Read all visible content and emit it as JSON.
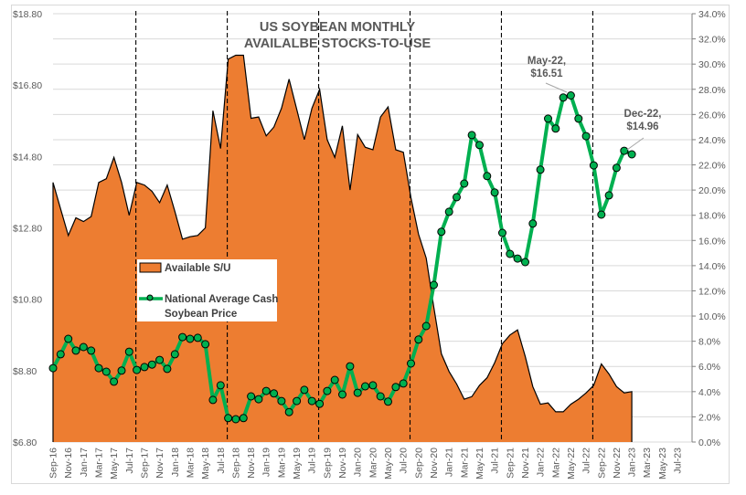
{
  "chart_data": {
    "type": "area+line",
    "title": [
      "US SOYBEAN MONTHLY",
      "AVAILALBE STOCKS-TO-USE"
    ],
    "xlabel": "",
    "ylabel_left": "",
    "ylabel_right": "",
    "left_axis": {
      "min": 6.8,
      "max": 18.8,
      "step": 2.0,
      "tick_labels": [
        "$6.80",
        "$8.80",
        "$10.80",
        "$12.80",
        "$14.80",
        "$16.80",
        "$18.80"
      ]
    },
    "right_axis": {
      "min": 0,
      "max": 34,
      "step": 2,
      "tick_labels": [
        "0.0%",
        "2.0%",
        "4.0%",
        "6.0%",
        "8.0%",
        "10.0%",
        "12.0%",
        "14.0%",
        "16.0%",
        "18.0%",
        "20.0%",
        "22.0%",
        "24.0%",
        "26.0%",
        "28.0%",
        "30.0%",
        "32.0%",
        "34.0%"
      ]
    },
    "gridlines": "horizontal",
    "x_tick_labels": [
      "Sep-16",
      "Nov-16",
      "Jan-17",
      "Mar-17",
      "May-17",
      "Jul-17",
      "Sep-17",
      "Nov-17",
      "Jan-18",
      "Mar-18",
      "May-18",
      "Jul-18",
      "Sep-18",
      "Nov-18",
      "Jan-19",
      "Mar-19",
      "May-19",
      "Jul-19",
      "Sep-19",
      "Nov-19",
      "Jan-20",
      "Mar-20",
      "May-20",
      "Jul-20",
      "Sep-20",
      "Nov-20",
      "Jan-21",
      "Mar-21",
      "May-21",
      "Jul-21",
      "Sep-21",
      "Nov-21",
      "Jan-22",
      "Mar-22",
      "May-22",
      "Jul-22",
      "Sep-22",
      "Nov-22",
      "Jan-23",
      "Mar-23",
      "May-23",
      "Jul-23"
    ],
    "x_months_total": 83,
    "crop_year_markers": [
      "Aug-17",
      "Aug-18",
      "Aug-19",
      "Aug-20",
      "Aug-21",
      "Aug-22"
    ],
    "series": [
      {
        "name": "Available S/U",
        "type": "area",
        "axis": "right",
        "unit": "%",
        "color": "#ed7d31",
        "start": "Sep-16",
        "values": [
          20.6,
          18.5,
          16.4,
          17.8,
          17.5,
          17.9,
          20.6,
          20.9,
          22.6,
          20.6,
          18.0,
          20.6,
          20.4,
          19.9,
          19.0,
          20.4,
          18.3,
          16.1,
          16.3,
          16.4,
          17.0,
          26.3,
          23.3,
          30.4,
          30.7,
          30.7,
          25.7,
          25.8,
          24.3,
          25.0,
          26.5,
          28.8,
          26.4,
          24.0,
          26.5,
          28.0,
          24.0,
          22.6,
          25.1,
          20.0,
          24.4,
          23.4,
          23.2,
          25.8,
          26.6,
          23.2,
          23.0,
          19.4,
          16.5,
          14.6,
          10.7,
          7.0,
          5.6,
          4.6,
          3.4,
          3.6,
          4.5,
          5.1,
          6.3,
          7.8,
          8.5,
          8.9,
          6.8,
          4.4,
          3.0,
          3.1,
          2.4,
          2.4,
          3.0,
          3.4,
          3.9,
          4.5,
          6.2,
          5.4,
          4.4,
          3.9,
          4.0
        ]
      },
      {
        "name": "National Average Cash Soybean Price",
        "type": "line",
        "axis": "left",
        "unit": "$",
        "color": "#00b050",
        "start": "Sep-16",
        "values": [
          8.87,
          9.26,
          9.69,
          9.36,
          9.46,
          9.36,
          8.87,
          8.77,
          8.49,
          8.8,
          9.33,
          8.82,
          8.9,
          8.97,
          9.1,
          8.85,
          9.26,
          9.74,
          9.69,
          9.72,
          9.54,
          7.98,
          8.39,
          7.47,
          7.44,
          7.47,
          8.08,
          8.0,
          8.23,
          8.16,
          7.95,
          7.64,
          7.95,
          8.26,
          7.95,
          7.87,
          8.23,
          8.54,
          8.13,
          8.92,
          8.18,
          8.36,
          8.39,
          8.08,
          7.93,
          8.34,
          8.44,
          9.0,
          9.67,
          10.05,
          11.2,
          12.69,
          13.25,
          13.66,
          14.04,
          15.4,
          15.12,
          14.25,
          13.79,
          12.66,
          12.07,
          11.94,
          11.84,
          12.92,
          14.43,
          15.86,
          15.58,
          16.45,
          16.51,
          15.86,
          15.37,
          14.55,
          13.17,
          13.71,
          14.48,
          14.96,
          14.86
        ]
      }
    ],
    "annotations": [
      {
        "month": "May-22",
        "lines": [
          "May-22,",
          "$16.51"
        ],
        "value": 16.51
      },
      {
        "month": "Dec-22",
        "lines": [
          "Dec-22,",
          "$14.96"
        ],
        "value": 14.96
      }
    ],
    "legend": {
      "placement": "center-left",
      "entries": [
        {
          "label": "Available S/U",
          "kind": "area",
          "color": "#ed7d31"
        },
        {
          "label_lines": [
            "National Average Cash",
            "Soybean Price"
          ],
          "kind": "line-marker",
          "color": "#00b050"
        }
      ]
    }
  }
}
